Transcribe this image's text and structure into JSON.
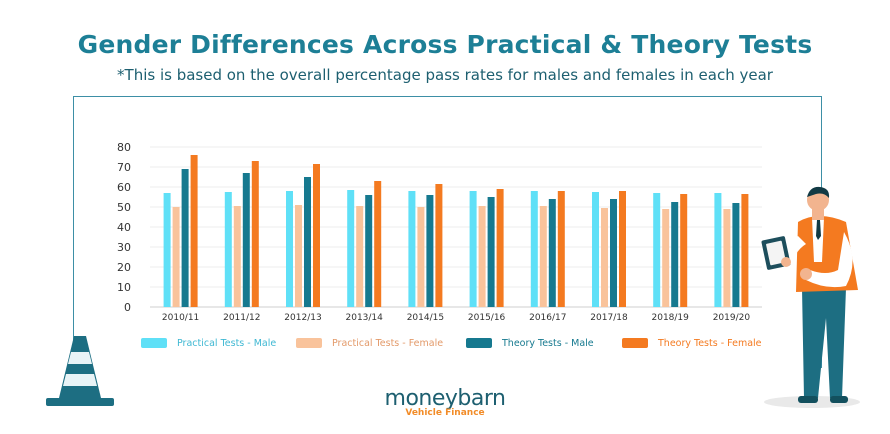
{
  "header": {
    "title": "Gender Differences Across Practical & Theory Tests",
    "subtitle": "*This is based on the overall percentage pass rates for males and females in each year"
  },
  "logo": {
    "name": "moneybarn",
    "tagline": "Vehicle Finance"
  },
  "colors": {
    "practical_male": "#5fe0f7",
    "practical_female": "#f9c39b",
    "theory_male": "#16798f",
    "theory_female": "#f47a20",
    "title": "#1d7f96"
  },
  "chart_data": {
    "type": "bar",
    "title": "",
    "xlabel": "",
    "ylabel": "",
    "ylim": [
      0,
      80
    ],
    "yticks": [
      0,
      10,
      20,
      30,
      40,
      50,
      60,
      70,
      80
    ],
    "grid": true,
    "legend_position": "bottom",
    "categories": [
      "2010/11",
      "2011/12",
      "2012/13",
      "2013/14",
      "2014/15",
      "2015/16",
      "2016/17",
      "2017/18",
      "2018/19",
      "2019/20"
    ],
    "series": [
      {
        "name": "Practical Tests - Male",
        "color": "#5fe0f7",
        "values": [
          57,
          57.5,
          58,
          58.5,
          58,
          58,
          58,
          57.5,
          57,
          57
        ]
      },
      {
        "name": "Practical Tests - Female",
        "color": "#f9c39b",
        "values": [
          50,
          50.5,
          51,
          50.5,
          50,
          50.5,
          50.5,
          49.5,
          49,
          49
        ]
      },
      {
        "name": "Theory Tests - Male",
        "color": "#16798f",
        "values": [
          69,
          67,
          65,
          56,
          56,
          55,
          54,
          54,
          52.5,
          52
        ]
      },
      {
        "name": "Theory Tests - Female",
        "color": "#f47a20",
        "values": [
          76,
          73,
          71.5,
          63,
          61.5,
          59,
          58,
          58,
          56.5,
          56.5
        ]
      }
    ]
  }
}
